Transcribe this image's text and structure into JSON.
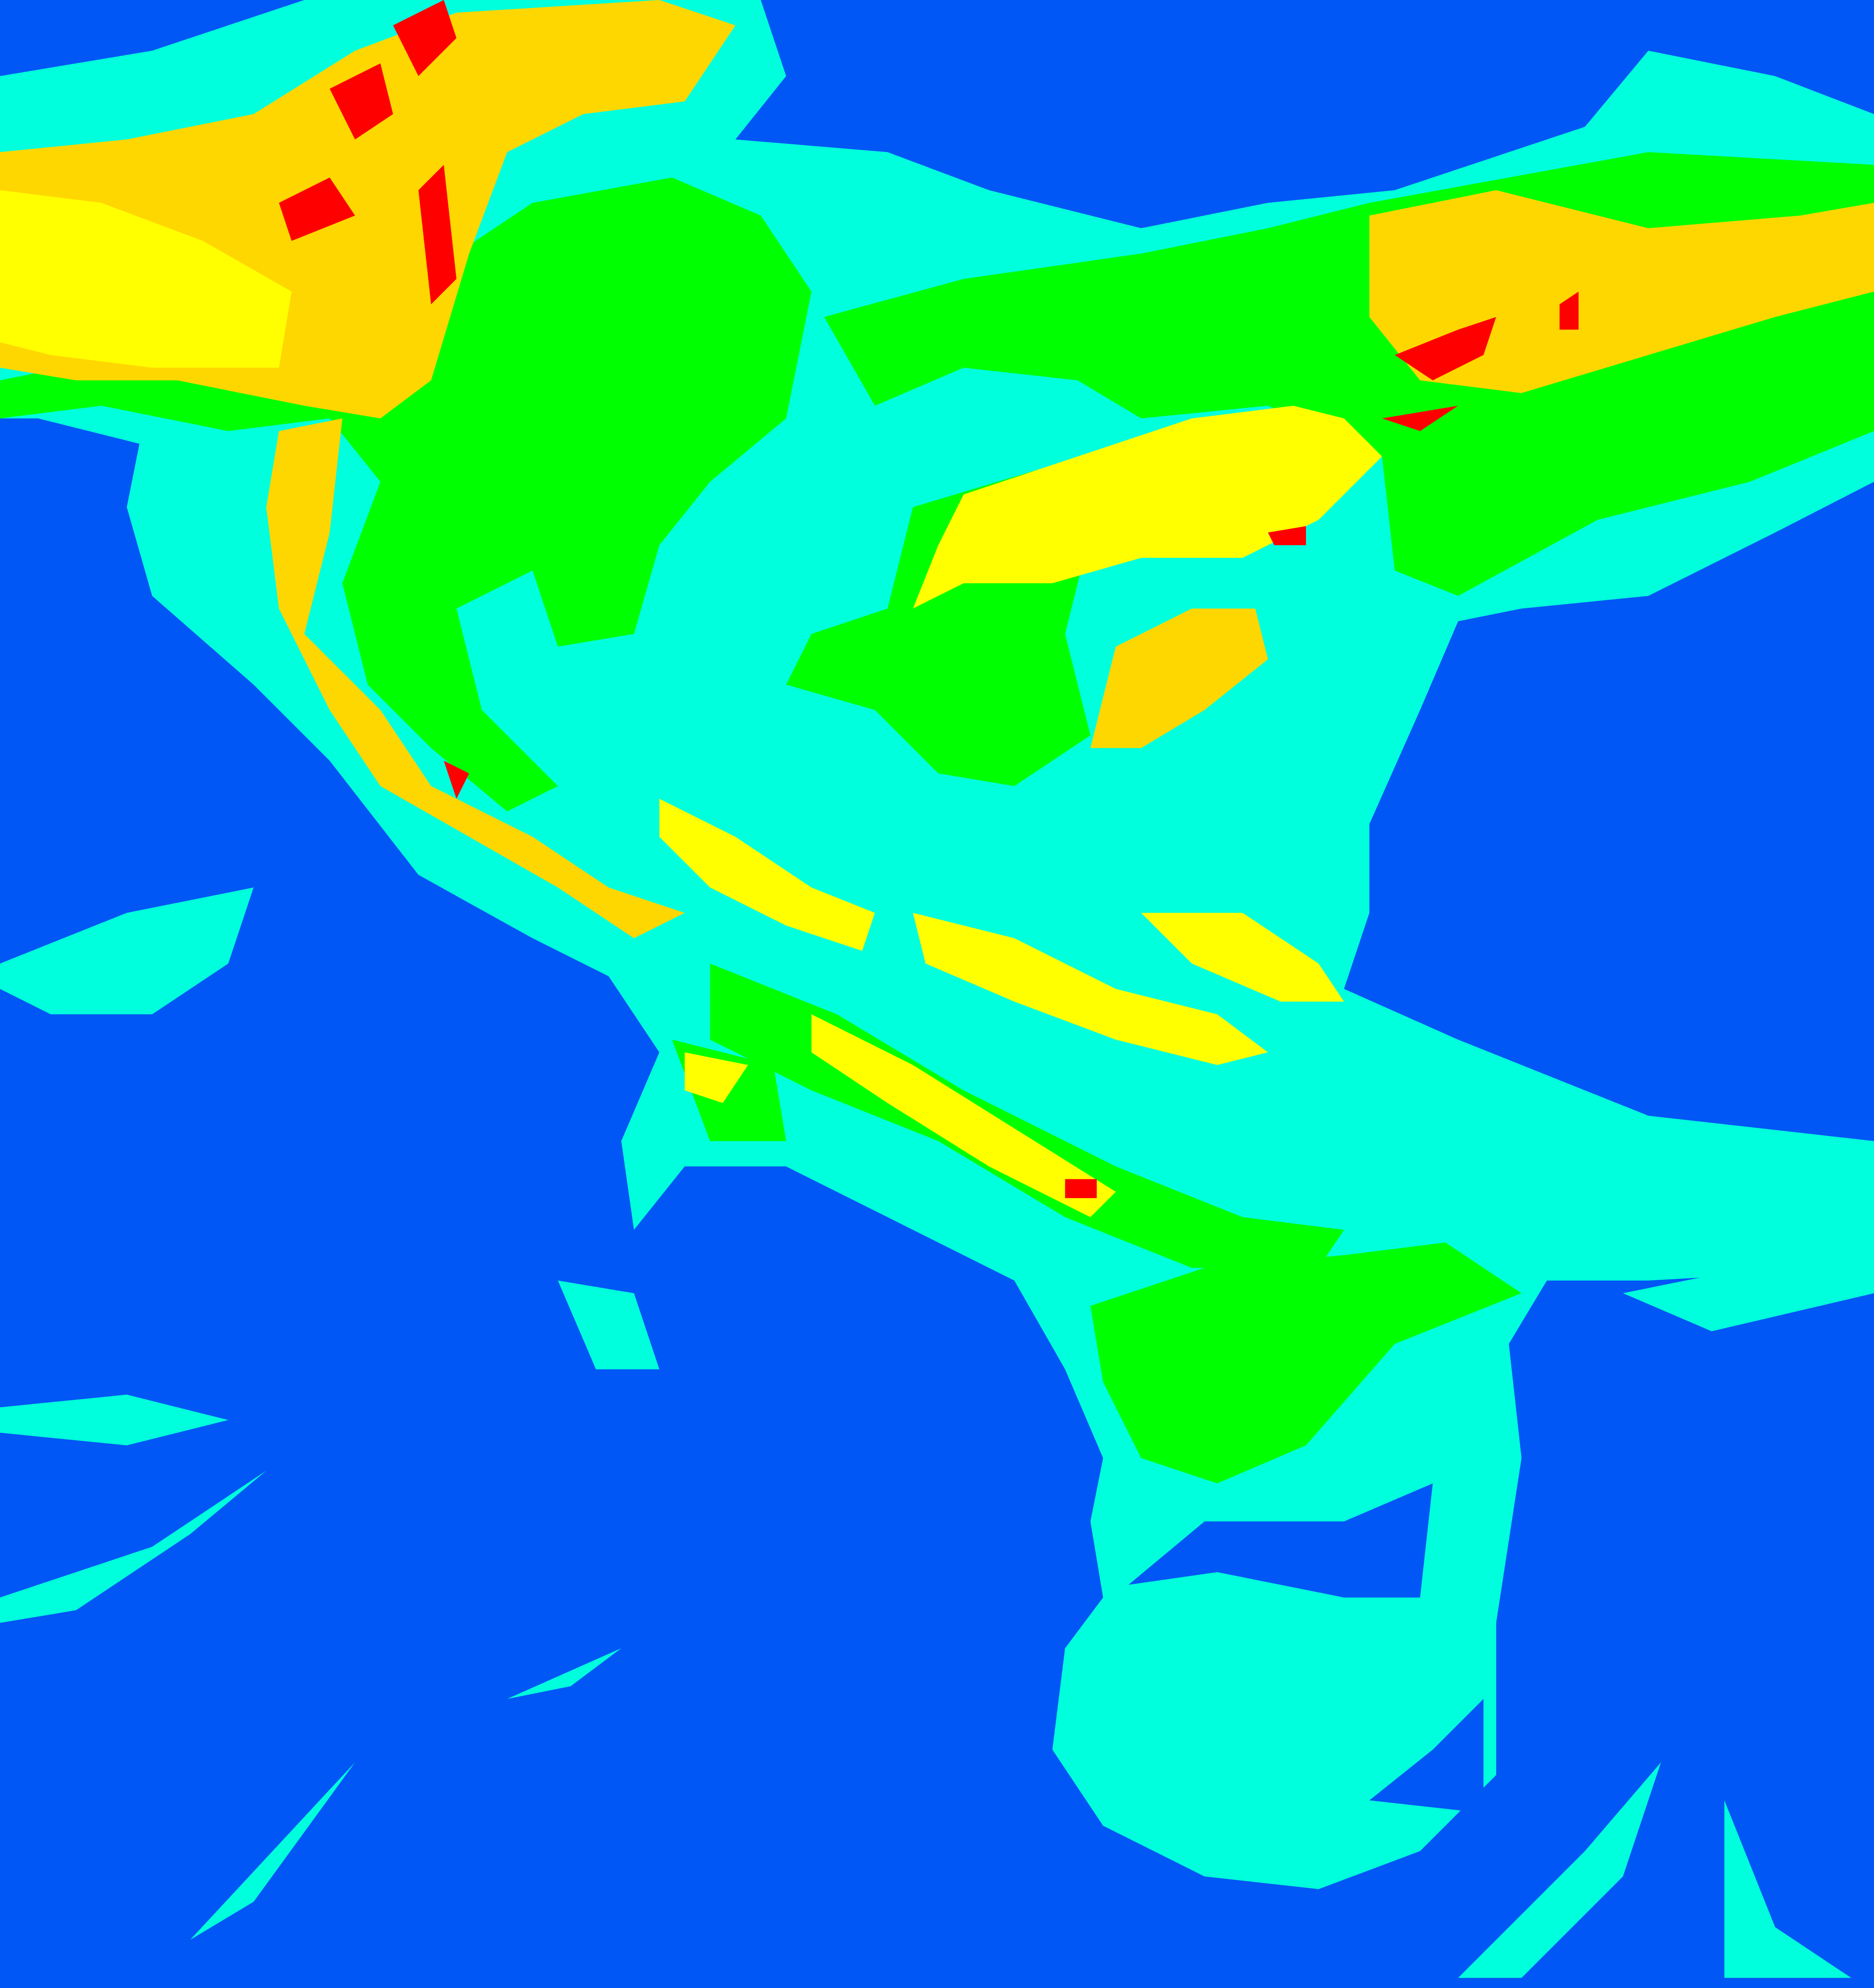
{
  "map": {
    "colors": {
      "background": "#0057f5",
      "cyan": "#00ffdc",
      "green": "#00ff00",
      "yellow": "#ffff00",
      "gold": "#ffd700",
      "red": "#ff0000"
    }
  }
}
